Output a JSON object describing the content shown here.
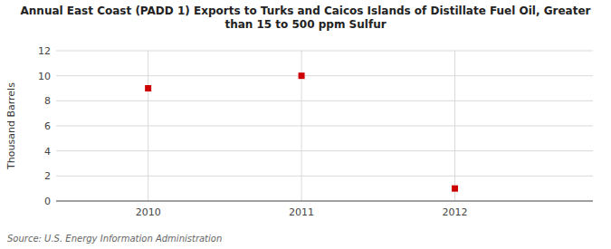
{
  "chart_data": {
    "type": "scatter",
    "title": "Annual East Coast (PADD 1) Exports to Turks and Caicos Islands of Distillate Fuel Oil, Greater\nthan 15 to 500 ppm Sulfur",
    "ylabel": "Thousand Barrels",
    "source": "Source: U.S. Energy Information Administration",
    "x": [
      2010,
      2011,
      2012
    ],
    "values": [
      9,
      10,
      1
    ],
    "color": "#cc0000",
    "marker": "square",
    "xlim": [
      2009.4,
      2012.9
    ],
    "ylim": [
      0,
      12
    ],
    "xticks": [
      2010,
      2011,
      2012
    ],
    "yticks": [
      0,
      2,
      4,
      6,
      8,
      10,
      12
    ],
    "grid": true
  }
}
